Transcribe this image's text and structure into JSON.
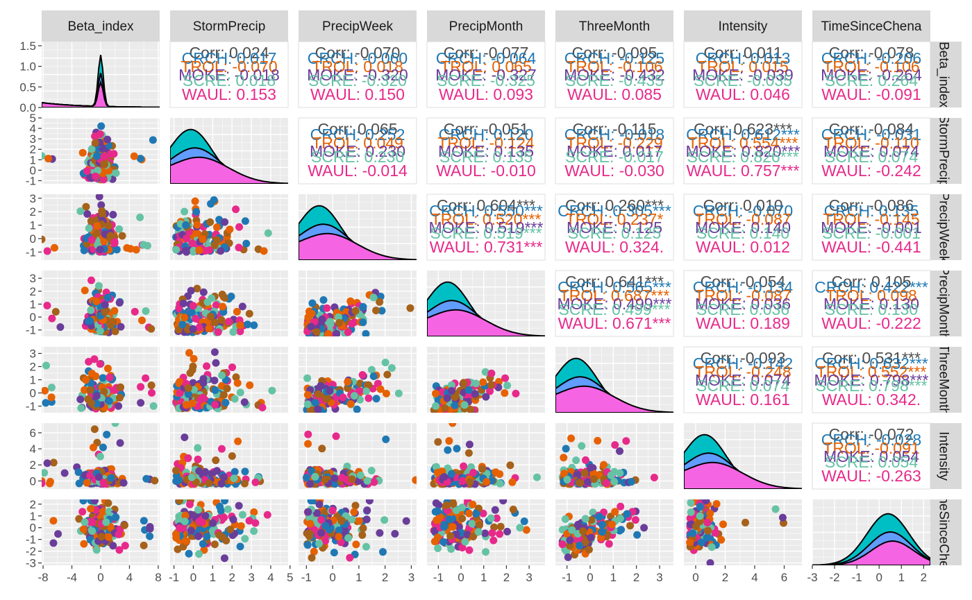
{
  "chart_data": {
    "type": "pairs",
    "variables": [
      "Beta_index",
      "StormPrecip",
      "PrecipWeek",
      "PrecipMonth",
      "ThreeMonth",
      "Intensity",
      "TimeSinceChena"
    ],
    "group_colors": {
      "overall": "#4d4d4d",
      "g1": "#1f78b4",
      "g2": "#e66101",
      "g3": "#6a3d9a",
      "g4": "#66c2a5",
      "g5": "#e7298a",
      "g6": "#a6611a"
    },
    "group_abbr": [
      "CRCH",
      "TROL",
      "MOKE",
      "SCRE",
      "WAUL"
    ],
    "density_fills": [
      "#f8766d",
      "#00ba38",
      "#00bfc4",
      "#619cff",
      "#f564e3"
    ],
    "x_ticks": [
      [
        -8,
        -4,
        0,
        4,
        8
      ],
      [
        -1,
        0,
        1,
        2,
        3,
        4,
        5
      ],
      [
        -1,
        0,
        1,
        2,
        3
      ],
      [
        -1,
        0,
        1,
        2,
        3
      ],
      [
        -1,
        0,
        1,
        2,
        3
      ],
      [
        0,
        2,
        4,
        6
      ],
      [
        -3,
        -2,
        -1,
        0,
        1,
        2
      ]
    ],
    "x_ranges": [
      [
        -8.2,
        8.2
      ],
      [
        -1.2,
        4.9
      ],
      [
        -1.3,
        3.2
      ],
      [
        -1.5,
        3.7
      ],
      [
        -1.5,
        3.6
      ],
      [
        -0.8,
        7.2
      ],
      [
        -3.0,
        2.3
      ]
    ],
    "y_ticks": [
      [
        0.0,
        0.5,
        1.0,
        1.5
      ],
      [
        -1,
        0,
        1,
        2,
        3,
        4,
        5
      ],
      [
        -1,
        0,
        1,
        2,
        3
      ],
      [
        -1,
        0,
        1,
        2,
        3
      ],
      [
        -1,
        0,
        1,
        2,
        3
      ],
      [
        0,
        2,
        4,
        6
      ],
      [
        -3,
        -2,
        -1,
        0,
        1,
        2
      ]
    ],
    "y_ranges": [
      [
        0,
        1.6
      ],
      [
        -1.3,
        5.0
      ],
      [
        -1.6,
        3.3
      ],
      [
        -1.5,
        3.6
      ],
      [
        -1.5,
        3.5
      ],
      [
        -1.0,
        7.2
      ],
      [
        -3.2,
        2.4
      ]
    ],
    "correlations": [
      {
        "row": 0,
        "col": 1,
        "corr": "Corr: 0.024",
        "lines": [
          "CRCH: 0.017",
          "TROL: -0.070",
          "MOKE: -0.018",
          "SCRE: 0.018",
          "WAUL: 0.153"
        ]
      },
      {
        "row": 0,
        "col": 2,
        "corr": "Corr: -0.070",
        "lines": [
          "CRCH: -0.060",
          "TROL: 0.018",
          "MOKE: -0.320",
          "SCRE: -0.320",
          "WAUL: 0.150"
        ]
      },
      {
        "row": 0,
        "col": 3,
        "corr": "Corr: -0.077",
        "lines": [
          "CRCH: -0.064",
          "TROL: 0.065",
          "MOKE: -0.327",
          "SCRE: -0.325",
          "WAUL: 0.093"
        ]
      },
      {
        "row": 0,
        "col": 4,
        "corr": "Corr: -0.095",
        "lines": [
          "CRCH: -0.125",
          "TROL: -0.106",
          "MOKE: -0.432",
          "SCRE: -0.435",
          "WAUL: 0.085"
        ]
      },
      {
        "row": 0,
        "col": 5,
        "corr": "Corr: 0.011",
        "lines": [
          "CRCH: 0.013",
          "TROL: 0.015",
          "MOKE: -0.039",
          "SCRE: -0.035",
          "WAUL: 0.046"
        ]
      },
      {
        "row": 0,
        "col": 6,
        "corr": "Corr: -0.078",
        "lines": [
          "CRCH: -0.206",
          "TROL: -0.106",
          "MOKE: -0.264",
          "SCRE: 0.264",
          "WAUL: -0.091"
        ]
      },
      {
        "row": 1,
        "col": 2,
        "corr": "Corr: 0.065",
        "lines": [
          "CRCH: 0.252",
          "TROL: 0.049",
          "MOKE: 0.230",
          "SCRE: 0.230",
          "WAUL: -0.014"
        ]
      },
      {
        "row": 1,
        "col": 3,
        "corr": "Corr: -0.051",
        "lines": [
          "CRCH: 0.120",
          "TROL: -0.124",
          "MOKE: 0.135",
          "SCRE: 0.135",
          "WAUL: -0.010"
        ]
      },
      {
        "row": 1,
        "col": 4,
        "corr": "Corr: -0.115",
        "lines": [
          "CRCH: -0.018",
          "TROL: -0.229",
          "MOKE: 0.017",
          "SCRE: -0.017",
          "WAUL: -0.030"
        ]
      },
      {
        "row": 1,
        "col": 5,
        "corr": "Corr: 0.623***",
        "lines": [
          "CRCH: 0.612***",
          "TROL: 0.554***",
          "MOKE: 0.820***",
          "SCRE: 0.826***",
          "WAUL: 0.757***"
        ]
      },
      {
        "row": 1,
        "col": 6,
        "corr": "Corr: -0.084",
        "lines": [
          "CRCH: -0.031",
          "TROL: -0.110",
          "MOKE: 0.074",
          "SCRE: 0.074",
          "WAUL: -0.242"
        ]
      },
      {
        "row": 2,
        "col": 3,
        "corr": "Corr: 0.604***",
        "lines": [
          "CRCH: 0.550***",
          "TROL: 0.520***",
          "MOKE: 0.519***",
          "SCRE: 0.519***",
          "WAUL: 0.731***"
        ]
      },
      {
        "row": 2,
        "col": 4,
        "corr": "Corr: 0.260***",
        "lines": [
          "CRCH: 0.305***",
          "TROL: 0.237*",
          "MOKE: 0.125",
          "SCRE: 0.125",
          "WAUL: 0.324."
        ]
      },
      {
        "row": 2,
        "col": 5,
        "corr": "Corr: 0.010",
        "lines": [
          "CRCH: -0.070",
          "TROL: -0.087",
          "MOKE: 0.140",
          "SCRE: 0.140",
          "WAUL: 0.012"
        ]
      },
      {
        "row": 2,
        "col": 6,
        "corr": "Corr: -0.086",
        "lines": [
          "CRCH: 0.135",
          "TROL: -0.145",
          "MOKE: -0.001",
          "SCRE: -0.001",
          "WAUL: -0.441"
        ]
      },
      {
        "row": 3,
        "col": 4,
        "corr": "Corr: 0.641***",
        "lines": [
          "CRCH: 0.565***",
          "TROL: 0.687***",
          "MOKE: 0.499***",
          "SCRE: 0.499***",
          "WAUL: 0.671***"
        ]
      },
      {
        "row": 3,
        "col": 5,
        "corr": "Corr: -0.054",
        "lines": [
          "CRCH: -0.134",
          "TROL: -0.087",
          "MOKE: 0.036",
          "SCRE: 0.036",
          "WAUL: 0.189"
        ]
      },
      {
        "row": 3,
        "col": 6,
        "corr": "Corr: 0.105",
        "lines": [
          "CRCH: 0.422***",
          "TROL: 0.098",
          "MOKE: 0.130",
          "SCRE: 0.130",
          "WAUL: -0.222"
        ]
      },
      {
        "row": 4,
        "col": 5,
        "corr": "Corr: -0.093",
        "lines": [
          "CRCH: -0.142",
          "TROL: -0.248",
          "MOKE: 0.074",
          "SCRE: 0.074",
          "WAUL: 0.161"
        ]
      },
      {
        "row": 4,
        "col": 6,
        "corr": "Corr: 0.531***",
        "lines": [
          "CRCH: 0.632***",
          "TROL: 0.552***",
          "MOKE: 0.798***",
          "SCRE: 0.798***",
          "WAUL: 0.342."
        ]
      },
      {
        "row": 5,
        "col": 6,
        "corr": "Corr: -0.072",
        "lines": [
          "CRCH: -0.028",
          "TROL: -0.091",
          "MOKE: 0.054",
          "SCRE: 0.054",
          "WAUL: -0.263"
        ]
      }
    ]
  }
}
